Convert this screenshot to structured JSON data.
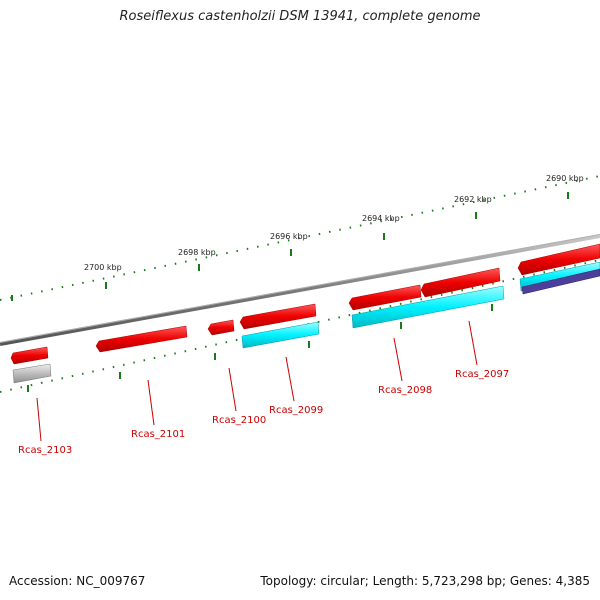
{
  "title": "Roseiflexus castenholzii DSM 13941, complete genome",
  "footer": {
    "accession": "Accession: NC_009767",
    "summary": "Topology: circular; Length: 5,723,298 bp; Genes: 4,385"
  },
  "scale_labels": [
    "2700 kbp",
    "2698 kbp",
    "2696 kbp",
    "2694 kbp",
    "2692 kbp",
    "2690 kbp"
  ],
  "gene_labels": [
    "Rcas_2103",
    "Rcas_2101",
    "Rcas_2100",
    "Rcas_2099",
    "Rcas_2098",
    "Rcas_2097"
  ],
  "colors": {
    "cds_forward": "#ff0000",
    "cds_highlight": "#00ffff",
    "pseudo": "#b5b5b5",
    "other": "#4b3f9a",
    "backbone": "#808080",
    "tick": "#1a7a1a",
    "label": "#cc0000"
  }
}
